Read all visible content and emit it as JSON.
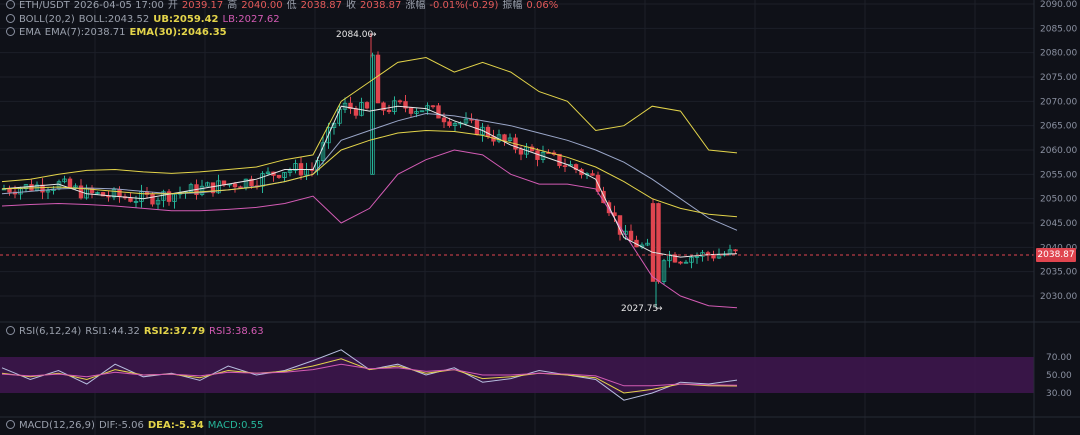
{
  "header": {
    "pair": "ETH/USDT",
    "time": "2026-04-05 17:00",
    "open_label": "开",
    "open": "2039.17",
    "high_label": "高",
    "high": "2040.00",
    "low_label": "低",
    "low": "2038.87",
    "close_label": "收",
    "close": "2038.87",
    "change_label": "涨幅",
    "change": "-0.01%(-0.29)",
    "amp_label": "振幅",
    "amp": "0.06%"
  },
  "boll": {
    "label": "BOLL(20,2)",
    "mid": "BOLL:2043.52",
    "ub": "UB:2059.42",
    "lb": "LB:2027.62"
  },
  "ema": {
    "label": "EMA",
    "ema7": "EMA(7):2038.71",
    "ema30": "EMA(30):2046.35"
  },
  "rsi": {
    "label": "RSI(6,12,24)",
    "rsi1": "RSI1:44.32",
    "rsi2": "RSI2:37.79",
    "rsi3": "RSI3:38.63"
  },
  "macd": {
    "label": "MACD(12,26,9)",
    "dif": "DIF:-5.06",
    "dea": "DEA:-5.34",
    "macd": "MACD:0.55"
  },
  "annotations": {
    "high_mark": "2084.00",
    "low_mark": "2027.75"
  },
  "current_price": "2038.87",
  "colors": {
    "up": "#26b59a",
    "down": "#e0454f",
    "boll_mid": "#9aa6c8",
    "boll_ub": "#e3d44a",
    "boll_lb": "#d35bb4",
    "ema7": "#e8e8e8",
    "ema30": "#e3d44a",
    "rsi_zone": "#4a1a5a"
  },
  "chart_data": [
    {
      "type": "line",
      "title": "ETH/USDT",
      "y_ticks": [
        2030,
        2035,
        2040,
        2045,
        2050,
        2055,
        2060,
        2065,
        2070,
        2075,
        2080,
        2085,
        2090
      ],
      "ylim": [
        2026.5,
        2091
      ],
      "series": [
        {
          "name": "UB",
          "values": [
            2053.5,
            2054.0,
            2055.0,
            2055.8,
            2056.0,
            2055.5,
            2055.2,
            2055.5,
            2056.0,
            2056.5,
            2058.0,
            2059.0,
            2070.0,
            2074.0,
            2078.0,
            2079.0,
            2076.0,
            2078.0,
            2076.0,
            2072.0,
            2070.0,
            2064.0,
            2065.0,
            2069.0,
            2068.0,
            2060.0,
            2059.4
          ]
        },
        {
          "name": "BOLL",
          "values": [
            2051.0,
            2051.5,
            2052.0,
            2052.2,
            2052.0,
            2051.5,
            2051.0,
            2051.2,
            2051.8,
            2052.5,
            2053.5,
            2055.0,
            2062.0,
            2064.0,
            2066.0,
            2067.5,
            2067.0,
            2066.0,
            2065.0,
            2063.5,
            2062.0,
            2060.0,
            2057.5,
            2054.0,
            2050.0,
            2046.0,
            2043.5
          ]
        },
        {
          "name": "LB",
          "values": [
            2048.5,
            2048.8,
            2049.0,
            2048.8,
            2048.5,
            2048.0,
            2047.5,
            2047.5,
            2047.8,
            2048.2,
            2049.0,
            2050.5,
            2045.0,
            2048.0,
            2055.0,
            2058.0,
            2060.0,
            2059.0,
            2055.0,
            2053.0,
            2053.0,
            2052.0,
            2043.0,
            2034.0,
            2030.0,
            2028.0,
            2027.6
          ]
        },
        {
          "name": "EMA(7)",
          "values": [
            2052.0,
            2052.5,
            2053.0,
            2051.0,
            2050.5,
            2050.0,
            2051.0,
            2052.0,
            2053.0,
            2054.0,
            2056.0,
            2056.0,
            2069.0,
            2068.0,
            2069.0,
            2068.5,
            2066.0,
            2064.0,
            2061.0,
            2059.0,
            2057.0,
            2054.0,
            2042.0,
            2039.0,
            2038.0,
            2038.5,
            2038.7
          ]
        },
        {
          "name": "EMA(30)",
          "values": [
            2052.0,
            2052.2,
            2052.4,
            2052.0,
            2051.5,
            2051.0,
            2051.0,
            2051.4,
            2051.8,
            2052.4,
            2053.5,
            2055.0,
            2060.0,
            2062.0,
            2063.5,
            2064.0,
            2063.8,
            2063.0,
            2061.5,
            2060.0,
            2058.5,
            2056.5,
            2053.5,
            2050.0,
            2048.0,
            2046.8,
            2046.3
          ]
        }
      ]
    },
    {
      "type": "line",
      "title": "RSI(6,12,24)",
      "y_ticks": [
        30.0,
        50.0,
        70.0
      ],
      "ylim": [
        20,
        80
      ],
      "series": [
        {
          "name": "RSI1",
          "values": [
            58,
            45,
            55,
            40,
            62,
            48,
            52,
            44,
            60,
            50,
            55,
            66,
            78,
            56,
            62,
            50,
            58,
            42,
            46,
            55,
            50,
            45,
            22,
            30,
            42,
            40,
            44.32
          ]
        },
        {
          "name": "RSI2",
          "values": [
            52,
            48,
            52,
            45,
            56,
            50,
            51,
            47,
            55,
            52,
            54,
            60,
            68,
            56,
            60,
            52,
            56,
            46,
            48,
            52,
            50,
            47,
            30,
            34,
            40,
            38,
            37.79
          ]
        },
        {
          "name": "RSI3",
          "values": [
            51,
            49,
            51,
            48,
            53,
            50,
            51,
            49,
            53,
            52,
            53,
            56,
            62,
            57,
            58,
            54,
            56,
            50,
            50,
            52,
            51,
            49,
            38,
            38,
            40,
            39,
            38.63
          ]
        }
      ]
    }
  ]
}
